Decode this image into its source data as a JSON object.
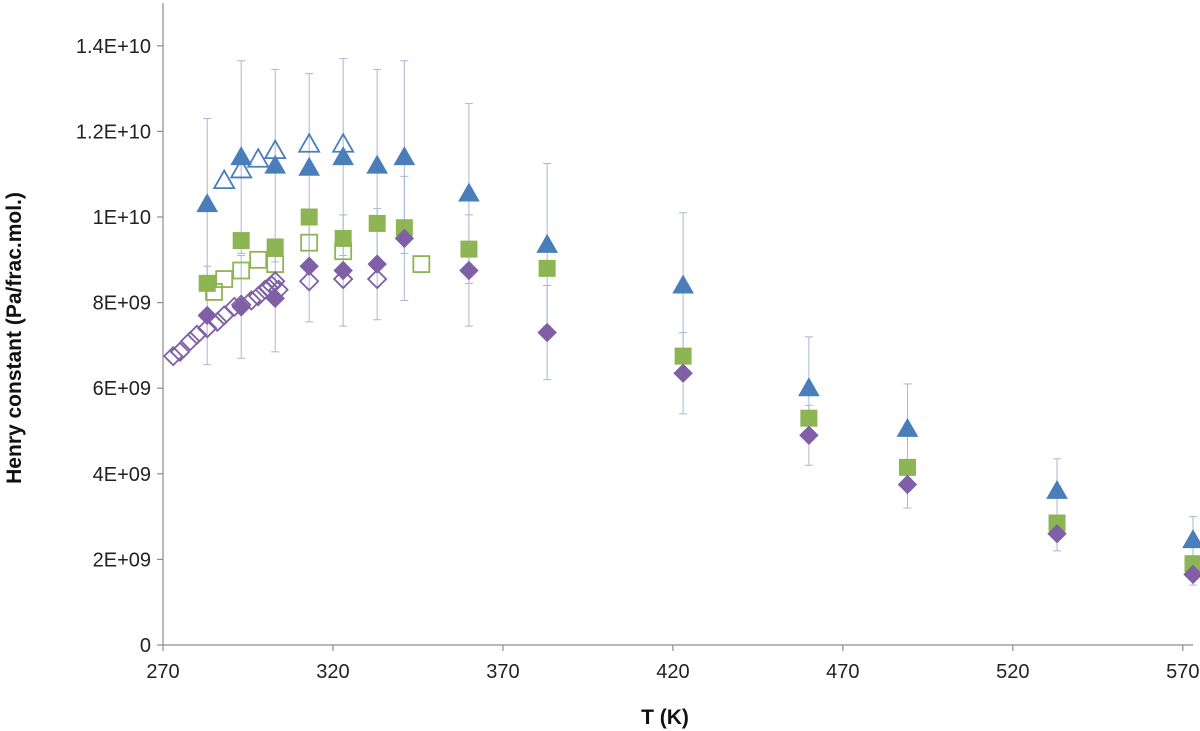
{
  "chart_data": {
    "type": "scatter",
    "title": "",
    "xlabel": "T (K)",
    "ylabel": "Henry constant (Pa/frac.mol.)",
    "xlim": [
      270,
      573
    ],
    "ylim": [
      0,
      15000000000.0
    ],
    "x_ticks": [
      270,
      320,
      370,
      420,
      470,
      520,
      570
    ],
    "y_ticks": [
      0,
      2000000000.0,
      4000000000.0,
      6000000000.0,
      8000000000.0,
      10000000000.0,
      12000000000.0,
      14000000000.0
    ],
    "x_tick_labels": [
      "270",
      "320",
      "370",
      "420",
      "470",
      "520",
      "570"
    ],
    "y_tick_labels": [
      "0",
      "2E+09",
      "4E+09",
      "6E+09",
      "8E+09",
      "1E+10",
      "1.2E+10",
      "1.4E+10"
    ],
    "grid": false,
    "legend": "none",
    "colors": {
      "triangle": "#4a7ebb",
      "square": "#8db553",
      "diamond": "#7f5fa5",
      "error_bar": "#a9b6d6"
    },
    "series": [
      {
        "marker": "triangle",
        "filled": true,
        "points": [
          {
            "x": 283,
            "y": 10300000000.0,
            "err": 2000000000.0
          },
          {
            "x": 293,
            "y": 11400000000.0,
            "err": 2250000000.0
          },
          {
            "x": 303,
            "y": 11200000000.0,
            "err": 2250000000.0
          },
          {
            "x": 313,
            "y": 11150000000.0,
            "err": 2200000000.0
          },
          {
            "x": 323,
            "y": 11400000000.0,
            "err": 2300000000.0
          },
          {
            "x": 333,
            "y": 11200000000.0,
            "err": 2250000000.0
          },
          {
            "x": 341,
            "y": 11400000000.0,
            "err": 2250000000.0
          },
          {
            "x": 360,
            "y": 10550000000.0,
            "err": 2100000000.0
          },
          {
            "x": 383,
            "y": 9350000000.0,
            "err": 1900000000.0
          },
          {
            "x": 423,
            "y": 8400000000.0,
            "err": 1700000000.0
          },
          {
            "x": 460,
            "y": 6000000000.0,
            "err": 1200000000.0
          },
          {
            "x": 489,
            "y": 5050000000.0,
            "err": 1050000000.0
          },
          {
            "x": 533,
            "y": 3600000000.0,
            "err": 750000000.0
          },
          {
            "x": 573,
            "y": 2450000000.0,
            "err": 550000000.0
          }
        ]
      },
      {
        "marker": "triangle",
        "filled": false,
        "points": [
          {
            "x": 288,
            "y": 10850000000.0
          },
          {
            "x": 293,
            "y": 11100000000.0
          },
          {
            "x": 298,
            "y": 11350000000.0
          },
          {
            "x": 303,
            "y": 11550000000.0
          },
          {
            "x": 313,
            "y": 11700000000.0
          },
          {
            "x": 323,
            "y": 11700000000.0
          }
        ]
      },
      {
        "marker": "square",
        "filled": true,
        "points": [
          {
            "x": 283,
            "y": 8450000000.0
          },
          {
            "x": 293,
            "y": 9450000000.0
          },
          {
            "x": 303,
            "y": 9300000000.0
          },
          {
            "x": 313,
            "y": 10000000000.0
          },
          {
            "x": 323,
            "y": 9500000000.0
          },
          {
            "x": 333,
            "y": 9850000000.0
          },
          {
            "x": 341,
            "y": 9750000000.0
          },
          {
            "x": 360,
            "y": 9250000000.0
          },
          {
            "x": 383,
            "y": 8800000000.0
          },
          {
            "x": 423,
            "y": 6750000000.0
          },
          {
            "x": 460,
            "y": 5300000000.0
          },
          {
            "x": 489,
            "y": 4150000000.0
          },
          {
            "x": 533,
            "y": 2850000000.0
          },
          {
            "x": 573,
            "y": 1900000000.0
          }
        ]
      },
      {
        "marker": "square",
        "filled": false,
        "points": [
          {
            "x": 285,
            "y": 8250000000.0
          },
          {
            "x": 288,
            "y": 8550000000.0
          },
          {
            "x": 293,
            "y": 8750000000.0
          },
          {
            "x": 298,
            "y": 9000000000.0
          },
          {
            "x": 303,
            "y": 8900000000.0
          },
          {
            "x": 313,
            "y": 9400000000.0
          },
          {
            "x": 323,
            "y": 9200000000.0
          },
          {
            "x": 346,
            "y": 8900000000.0
          }
        ]
      },
      {
        "marker": "diamond",
        "filled": true,
        "points": [
          {
            "x": 283,
            "y": 7700000000.0,
            "err": 1150000000.0
          },
          {
            "x": 293,
            "y": 7900000000.0,
            "err": 1200000000.0
          },
          {
            "x": 303,
            "y": 8100000000.0,
            "err": 1250000000.0
          },
          {
            "x": 313,
            "y": 8850000000.0,
            "err": 1300000000.0
          },
          {
            "x": 323,
            "y": 8750000000.0,
            "err": 1300000000.0
          },
          {
            "x": 333,
            "y": 8900000000.0,
            "err": 1300000000.0
          },
          {
            "x": 341,
            "y": 9500000000.0,
            "err": 1450000000.0
          },
          {
            "x": 360,
            "y": 8750000000.0,
            "err": 1300000000.0
          },
          {
            "x": 383,
            "y": 7300000000.0,
            "err": 1100000000.0
          },
          {
            "x": 423,
            "y": 6350000000.0,
            "err": 950000000.0
          },
          {
            "x": 460,
            "y": 4900000000.0,
            "err": 700000000.0
          },
          {
            "x": 489,
            "y": 3750000000.0,
            "err": 550000000.0
          },
          {
            "x": 533,
            "y": 2600000000.0,
            "err": 400000000.0
          },
          {
            "x": 573,
            "y": 1650000000.0,
            "err": 250000000.0
          }
        ]
      },
      {
        "marker": "diamond",
        "filled": false,
        "points": [
          {
            "x": 273,
            "y": 6750000000.0
          },
          {
            "x": 275,
            "y": 6850000000.0
          },
          {
            "x": 278,
            "y": 7100000000.0
          },
          {
            "x": 280,
            "y": 7250000000.0
          },
          {
            "x": 283,
            "y": 7400000000.0
          },
          {
            "x": 286,
            "y": 7550000000.0
          },
          {
            "x": 288,
            "y": 7700000000.0
          },
          {
            "x": 291,
            "y": 7900000000.0
          },
          {
            "x": 293,
            "y": 7950000000.0
          },
          {
            "x": 296,
            "y": 8050000000.0
          },
          {
            "x": 298,
            "y": 8150000000.0
          },
          {
            "x": 300,
            "y": 8300000000.0
          },
          {
            "x": 301,
            "y": 8350000000.0
          },
          {
            "x": 302,
            "y": 8400000000.0
          },
          {
            "x": 303,
            "y": 8500000000.0
          },
          {
            "x": 304,
            "y": 8300000000.0
          },
          {
            "x": 313,
            "y": 8500000000.0
          },
          {
            "x": 323,
            "y": 8550000000.0
          },
          {
            "x": 333,
            "y": 8550000000.0
          }
        ]
      }
    ]
  }
}
